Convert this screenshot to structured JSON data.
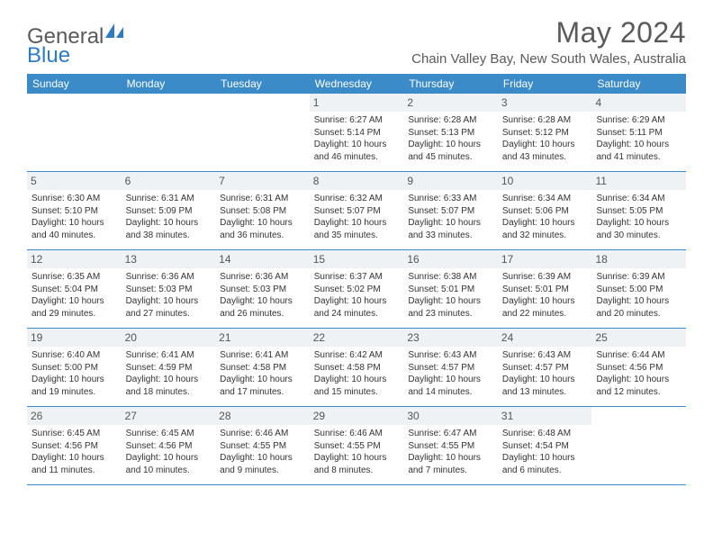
{
  "logo": {
    "part1": "General",
    "part2": "Blue"
  },
  "title": "May 2024",
  "location": "Chain Valley Bay, New South Wales, Australia",
  "colors": {
    "header_bg": "#3b8bc9",
    "header_text": "#ffffff",
    "daynum_bg": "#eef2f5",
    "week_border": "#3b8bc9",
    "body_text": "#333333",
    "title_text": "#5a5a5a",
    "logo_blue": "#2c7bc4"
  },
  "dayHeaders": [
    "Sunday",
    "Monday",
    "Tuesday",
    "Wednesday",
    "Thursday",
    "Friday",
    "Saturday"
  ],
  "weeks": [
    [
      null,
      null,
      null,
      {
        "d": "1",
        "sr": "6:27 AM",
        "ss": "5:14 PM",
        "dl1": "10 hours",
        "dl2": "and 46 minutes."
      },
      {
        "d": "2",
        "sr": "6:28 AM",
        "ss": "5:13 PM",
        "dl1": "10 hours",
        "dl2": "and 45 minutes."
      },
      {
        "d": "3",
        "sr": "6:28 AM",
        "ss": "5:12 PM",
        "dl1": "10 hours",
        "dl2": "and 43 minutes."
      },
      {
        "d": "4",
        "sr": "6:29 AM",
        "ss": "5:11 PM",
        "dl1": "10 hours",
        "dl2": "and 41 minutes."
      }
    ],
    [
      {
        "d": "5",
        "sr": "6:30 AM",
        "ss": "5:10 PM",
        "dl1": "10 hours",
        "dl2": "and 40 minutes."
      },
      {
        "d": "6",
        "sr": "6:31 AM",
        "ss": "5:09 PM",
        "dl1": "10 hours",
        "dl2": "and 38 minutes."
      },
      {
        "d": "7",
        "sr": "6:31 AM",
        "ss": "5:08 PM",
        "dl1": "10 hours",
        "dl2": "and 36 minutes."
      },
      {
        "d": "8",
        "sr": "6:32 AM",
        "ss": "5:07 PM",
        "dl1": "10 hours",
        "dl2": "and 35 minutes."
      },
      {
        "d": "9",
        "sr": "6:33 AM",
        "ss": "5:07 PM",
        "dl1": "10 hours",
        "dl2": "and 33 minutes."
      },
      {
        "d": "10",
        "sr": "6:34 AM",
        "ss": "5:06 PM",
        "dl1": "10 hours",
        "dl2": "and 32 minutes."
      },
      {
        "d": "11",
        "sr": "6:34 AM",
        "ss": "5:05 PM",
        "dl1": "10 hours",
        "dl2": "and 30 minutes."
      }
    ],
    [
      {
        "d": "12",
        "sr": "6:35 AM",
        "ss": "5:04 PM",
        "dl1": "10 hours",
        "dl2": "and 29 minutes."
      },
      {
        "d": "13",
        "sr": "6:36 AM",
        "ss": "5:03 PM",
        "dl1": "10 hours",
        "dl2": "and 27 minutes."
      },
      {
        "d": "14",
        "sr": "6:36 AM",
        "ss": "5:03 PM",
        "dl1": "10 hours",
        "dl2": "and 26 minutes."
      },
      {
        "d": "15",
        "sr": "6:37 AM",
        "ss": "5:02 PM",
        "dl1": "10 hours",
        "dl2": "and 24 minutes."
      },
      {
        "d": "16",
        "sr": "6:38 AM",
        "ss": "5:01 PM",
        "dl1": "10 hours",
        "dl2": "and 23 minutes."
      },
      {
        "d": "17",
        "sr": "6:39 AM",
        "ss": "5:01 PM",
        "dl1": "10 hours",
        "dl2": "and 22 minutes."
      },
      {
        "d": "18",
        "sr": "6:39 AM",
        "ss": "5:00 PM",
        "dl1": "10 hours",
        "dl2": "and 20 minutes."
      }
    ],
    [
      {
        "d": "19",
        "sr": "6:40 AM",
        "ss": "5:00 PM",
        "dl1": "10 hours",
        "dl2": "and 19 minutes."
      },
      {
        "d": "20",
        "sr": "6:41 AM",
        "ss": "4:59 PM",
        "dl1": "10 hours",
        "dl2": "and 18 minutes."
      },
      {
        "d": "21",
        "sr": "6:41 AM",
        "ss": "4:58 PM",
        "dl1": "10 hours",
        "dl2": "and 17 minutes."
      },
      {
        "d": "22",
        "sr": "6:42 AM",
        "ss": "4:58 PM",
        "dl1": "10 hours",
        "dl2": "and 15 minutes."
      },
      {
        "d": "23",
        "sr": "6:43 AM",
        "ss": "4:57 PM",
        "dl1": "10 hours",
        "dl2": "and 14 minutes."
      },
      {
        "d": "24",
        "sr": "6:43 AM",
        "ss": "4:57 PM",
        "dl1": "10 hours",
        "dl2": "and 13 minutes."
      },
      {
        "d": "25",
        "sr": "6:44 AM",
        "ss": "4:56 PM",
        "dl1": "10 hours",
        "dl2": "and 12 minutes."
      }
    ],
    [
      {
        "d": "26",
        "sr": "6:45 AM",
        "ss": "4:56 PM",
        "dl1": "10 hours",
        "dl2": "and 11 minutes."
      },
      {
        "d": "27",
        "sr": "6:45 AM",
        "ss": "4:56 PM",
        "dl1": "10 hours",
        "dl2": "and 10 minutes."
      },
      {
        "d": "28",
        "sr": "6:46 AM",
        "ss": "4:55 PM",
        "dl1": "10 hours",
        "dl2": "and 9 minutes."
      },
      {
        "d": "29",
        "sr": "6:46 AM",
        "ss": "4:55 PM",
        "dl1": "10 hours",
        "dl2": "and 8 minutes."
      },
      {
        "d": "30",
        "sr": "6:47 AM",
        "ss": "4:55 PM",
        "dl1": "10 hours",
        "dl2": "and 7 minutes."
      },
      {
        "d": "31",
        "sr": "6:48 AM",
        "ss": "4:54 PM",
        "dl1": "10 hours",
        "dl2": "and 6 minutes."
      },
      null
    ]
  ],
  "labels": {
    "sunrise": "Sunrise:",
    "sunset": "Sunset:",
    "daylight": "Daylight:"
  }
}
